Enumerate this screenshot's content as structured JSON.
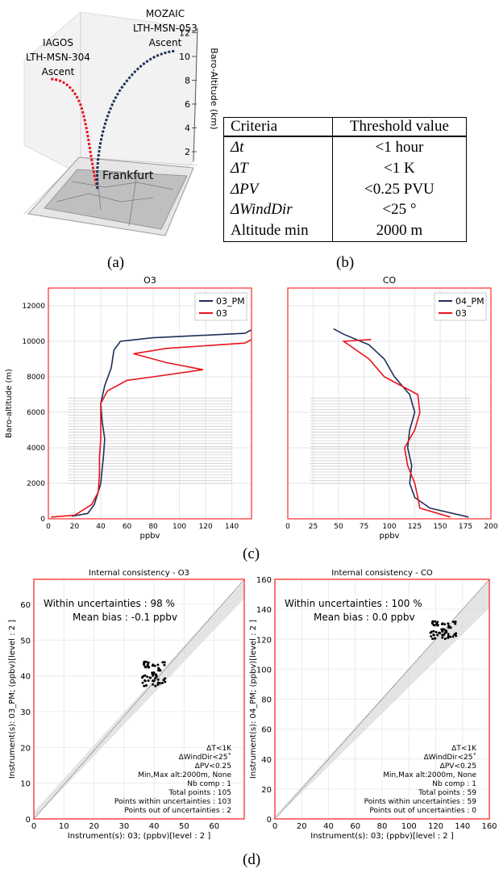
{
  "panel_a": {
    "label_left": [
      "IAGOS",
      "LTH-MSN-304",
      "Ascent"
    ],
    "label_right": [
      "MOZAIC",
      "LTH-MSN-053",
      "Ascent"
    ],
    "city": "Frankfurt",
    "axis_label": "Baro-Altitude (km)",
    "ticks": [
      "2",
      "4",
      "6",
      "8",
      "10",
      "12"
    ]
  },
  "table": {
    "headers": [
      "Criteria",
      "Threshold value"
    ],
    "rows": [
      {
        "criteria": "Δt",
        "value": "<1 hour"
      },
      {
        "criteria": "ΔT",
        "value": "<1 K"
      },
      {
        "criteria": "ΔPV",
        "value": "<0.25 PVU"
      },
      {
        "criteria": "ΔWindDir",
        "value": "<25 °"
      },
      {
        "criteria": "Altitude min",
        "value": "2000 m"
      }
    ]
  },
  "captions": {
    "a": "(a)",
    "b": "(b)",
    "c": "(c)",
    "d": "(d)"
  },
  "colors": {
    "series_pm": "#1f2f5a",
    "series_ref": "#e8141c",
    "frame": "#ff3a3a",
    "band": "#d9d9d9"
  },
  "chart_data": [
    {
      "type": "line",
      "title": "O3",
      "xlabel": "ppbv",
      "ylabel": "Baro-altitude (m)",
      "xlim": [
        0,
        155
      ],
      "ylim": [
        0,
        13000
      ],
      "xticks": [
        "0",
        "20",
        "40",
        "60",
        "80",
        "100",
        "120",
        "140"
      ],
      "yticks": [
        "0",
        "2000",
        "4000",
        "6000",
        "8000",
        "10000",
        "12000"
      ],
      "legend": "top-right",
      "series": [
        {
          "name": "03_PM",
          "points": [
            [
              18,
              150
            ],
            [
              30,
              300
            ],
            [
              35,
              800
            ],
            [
              38,
              1500
            ],
            [
              40,
              2000
            ],
            [
              41,
              2800
            ],
            [
              42,
              3500
            ],
            [
              43,
              4500
            ],
            [
              41,
              5500
            ],
            [
              40,
              6500
            ],
            [
              43,
              7500
            ],
            [
              48,
              8500
            ],
            [
              50,
              9500
            ],
            [
              55,
              10000
            ],
            [
              80,
              10200
            ],
            [
              150,
              10450
            ],
            [
              155,
              10650
            ]
          ]
        },
        {
          "name": "03",
          "points": [
            [
              2,
              100
            ],
            [
              20,
              200
            ],
            [
              33,
              800
            ],
            [
              38,
              1500
            ],
            [
              39,
              2500
            ],
            [
              39,
              3500
            ],
            [
              40,
              4500
            ],
            [
              40,
              5500
            ],
            [
              40,
              6500
            ],
            [
              45,
              7200
            ],
            [
              60,
              7800
            ],
            [
              80,
              8000
            ],
            [
              118,
              8400
            ],
            [
              90,
              8800
            ],
            [
              65,
              9300
            ],
            [
              90,
              9600
            ],
            [
              150,
              9900
            ],
            [
              155,
              10100
            ]
          ]
        }
      ]
    },
    {
      "type": "line",
      "title": "CO",
      "xlabel": "ppbv",
      "ylabel": "",
      "xlim": [
        0,
        200
      ],
      "ylim": [
        0,
        13000
      ],
      "xticks": [
        "0",
        "25",
        "50",
        "75",
        "100",
        "125",
        "150",
        "175",
        "200"
      ],
      "legend": "top-right",
      "series": [
        {
          "name": "04_PM",
          "points": [
            [
              178,
              100
            ],
            [
              140,
              600
            ],
            [
              125,
              1200
            ],
            [
              120,
              2000
            ],
            [
              122,
              3000
            ],
            [
              118,
              4000
            ],
            [
              120,
              5000
            ],
            [
              125,
              6000
            ],
            [
              120,
              7000
            ],
            [
              105,
              8000
            ],
            [
              95,
              9000
            ],
            [
              80,
              9800
            ],
            [
              55,
              10400
            ],
            [
              45,
              10700
            ]
          ]
        },
        {
          "name": "03",
          "points": [
            [
              160,
              100
            ],
            [
              130,
              600
            ],
            [
              128,
              1200
            ],
            [
              125,
              2000
            ],
            [
              118,
              3000
            ],
            [
              115,
              4000
            ],
            [
              125,
              5000
            ],
            [
              130,
              6000
            ],
            [
              128,
              7000
            ],
            [
              95,
              8000
            ],
            [
              80,
              9000
            ],
            [
              60,
              9800
            ],
            [
              55,
              10000
            ],
            [
              82,
              10100
            ]
          ]
        }
      ]
    },
    {
      "type": "scatter",
      "title": "Internal consistency - O3",
      "xlabel": "Instrument(s): 03; (ppbv)[level : 2 ]",
      "ylabel": "Instrument(s): 03_PM; (ppbv)[level : 2 ]",
      "xlim": [
        0,
        70
      ],
      "ylim": [
        0,
        67
      ],
      "xticks": [
        "0",
        "10",
        "20",
        "30",
        "40",
        "50",
        "60"
      ],
      "yticks": [
        "0",
        "10",
        "20",
        "30",
        "40",
        "50",
        "60"
      ],
      "within": "Within uncertainties : 98 %",
      "bias": "Mean bias : -0.1 ppbv",
      "info": [
        "ΔT<1K",
        "ΔWindDir<25˚",
        "ΔPV<0.25",
        "Min,Max alt:2000m, None",
        "Nb comp  : 1",
        "Total points : 105",
        "Points within uncertainties : 103",
        "Points out of uncertainties : 2"
      ],
      "cluster": {
        "x": [
          36,
          44
        ],
        "y": [
          37,
          44
        ]
      }
    },
    {
      "type": "scatter",
      "title": "Internal consistency - CO",
      "xlabel": "Instrument(s): 03; (ppbv)[level : 2 ]",
      "ylabel": "Instrument(s): 04_PM; (ppbv)[level : 2 ]",
      "xlim": [
        0,
        160
      ],
      "ylim": [
        0,
        160
      ],
      "xticks": [
        "0",
        "20",
        "40",
        "60",
        "80",
        "100",
        "120",
        "140",
        "160"
      ],
      "yticks": [
        "0",
        "20",
        "40",
        "60",
        "80",
        "100",
        "120",
        "140",
        "160"
      ],
      "within": "Within uncertainties : 100 %",
      "bias": "Mean bias :  0.0 ppbv",
      "info": [
        "ΔT<1K",
        "ΔWindDir<25˚",
        "ΔPV<0.25",
        "Min,Max alt:2000m, None",
        "Nb comp  : 1",
        "Total points : 59",
        "Points within uncertainties : 59",
        "Points out of uncertainties : 0"
      ],
      "cluster": {
        "x": [
          116,
          136
        ],
        "y": [
          120,
          132
        ]
      }
    }
  ]
}
